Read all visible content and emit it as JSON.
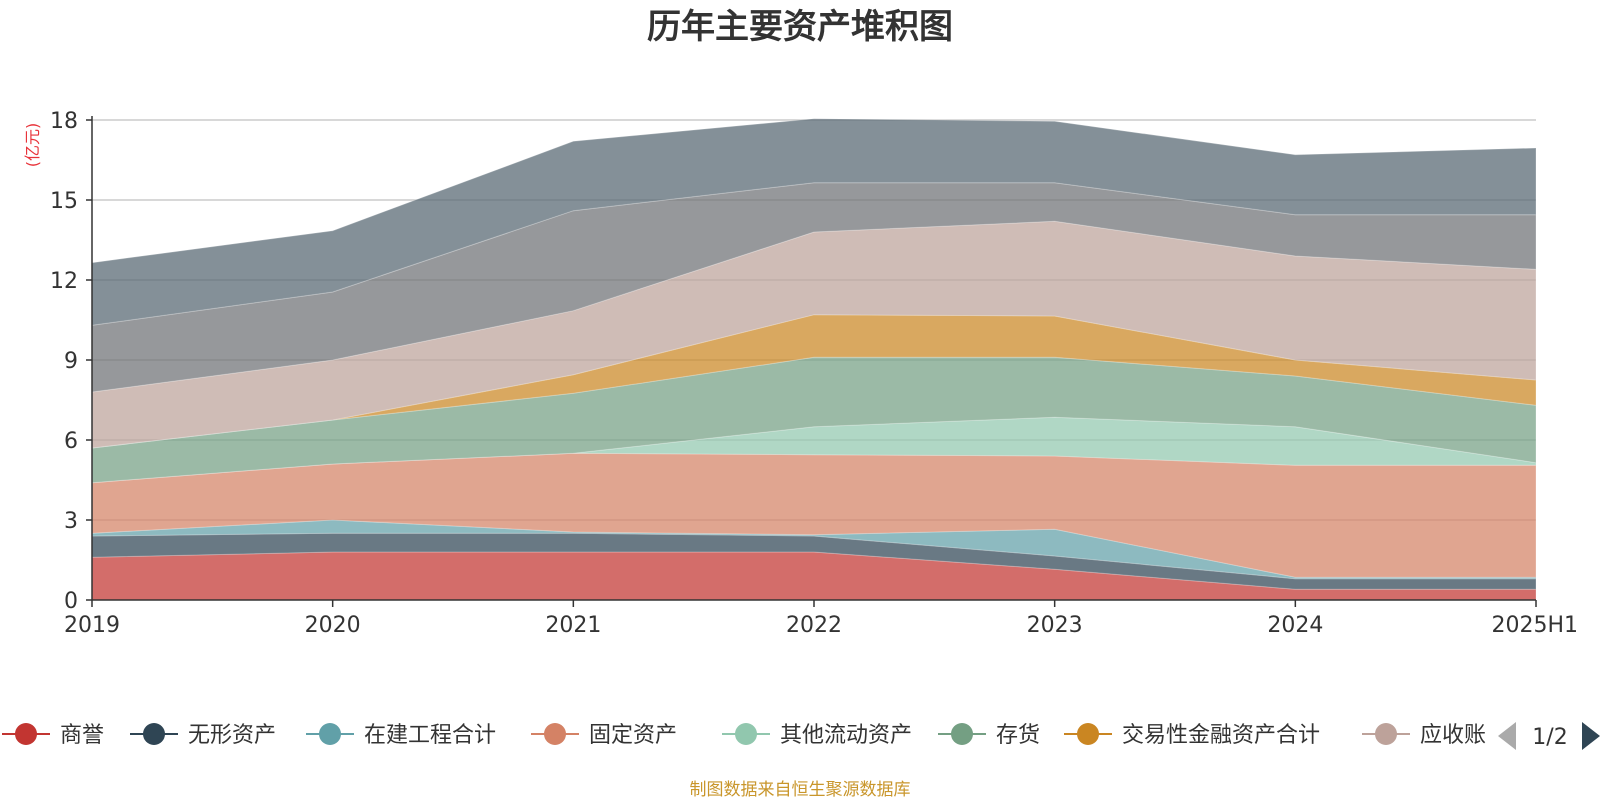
{
  "chart_data": {
    "type": "area",
    "stacked": true,
    "title": "历年主要资产堆积图",
    "ylabel": "(亿元)",
    "ylim": [
      0,
      18
    ],
    "yticks": [
      "0",
      "3",
      "6",
      "9",
      "12",
      "15",
      "18"
    ],
    "categories": [
      "2019",
      "2020",
      "2021",
      "2022",
      "2023",
      "2024",
      "2025H1"
    ],
    "grid": true,
    "legend_position": "bottom",
    "series": [
      {
        "name": "商誉",
        "color": "#c23531",
        "values": [
          1.6,
          1.8,
          1.8,
          1.8,
          1.15,
          0.4,
          0.4
        ]
      },
      {
        "name": "无形资产",
        "color": "#2f4554",
        "values": [
          0.8,
          0.7,
          0.7,
          0.6,
          0.5,
          0.4,
          0.4
        ]
      },
      {
        "name": "在建工程合计",
        "color": "#61a0a8",
        "values": [
          0.1,
          0.5,
          0.05,
          0.05,
          1.0,
          0.05,
          0.05
        ]
      },
      {
        "name": "固定资产",
        "color": "#d48265",
        "values": [
          1.9,
          2.1,
          2.95,
          3.0,
          2.75,
          4.2,
          4.2
        ]
      },
      {
        "name": "其他流动资产",
        "color": "#91c7ae",
        "values": [
          0.0,
          0.0,
          0.0,
          1.05,
          1.45,
          1.45,
          0.1
        ]
      },
      {
        "name": "存货",
        "color": "#749f83",
        "values": [
          1.3,
          1.65,
          2.25,
          2.6,
          2.25,
          1.9,
          2.15
        ]
      },
      {
        "name": "交易性金融资产合计",
        "color": "#ca8622",
        "values": [
          0.0,
          0.0,
          0.7,
          1.6,
          1.55,
          0.6,
          0.95
        ]
      },
      {
        "name": "应收账款",
        "color": "#bda29a",
        "values": [
          2.1,
          2.25,
          2.4,
          3.1,
          3.55,
          3.9,
          4.15
        ]
      },
      {
        "name": "",
        "color": "#6e7074",
        "values": [
          2.5,
          2.55,
          3.75,
          1.85,
          1.45,
          1.55,
          2.05
        ]
      },
      {
        "name": "",
        "color": "#546570",
        "values": [
          2.35,
          2.3,
          2.6,
          2.4,
          2.3,
          2.25,
          2.5
        ]
      }
    ]
  },
  "legend_items": [
    {
      "name": "商誉",
      "color": "#c23531"
    },
    {
      "name": "无形资产",
      "color": "#2f4554"
    },
    {
      "name": "在建工程合计",
      "color": "#61a0a8"
    },
    {
      "name": "固定资产",
      "color": "#d48265"
    },
    {
      "name": "其他流动资产",
      "color": "#91c7ae"
    },
    {
      "name": "存货",
      "color": "#749f83"
    },
    {
      "name": "交易性金融资产合计",
      "color": "#ca8622"
    },
    {
      "name": "应收账",
      "color": "#bda29a"
    }
  ],
  "legend_pager": {
    "text": "1/2"
  },
  "source_note": "制图数据来自恒生聚源数据库"
}
